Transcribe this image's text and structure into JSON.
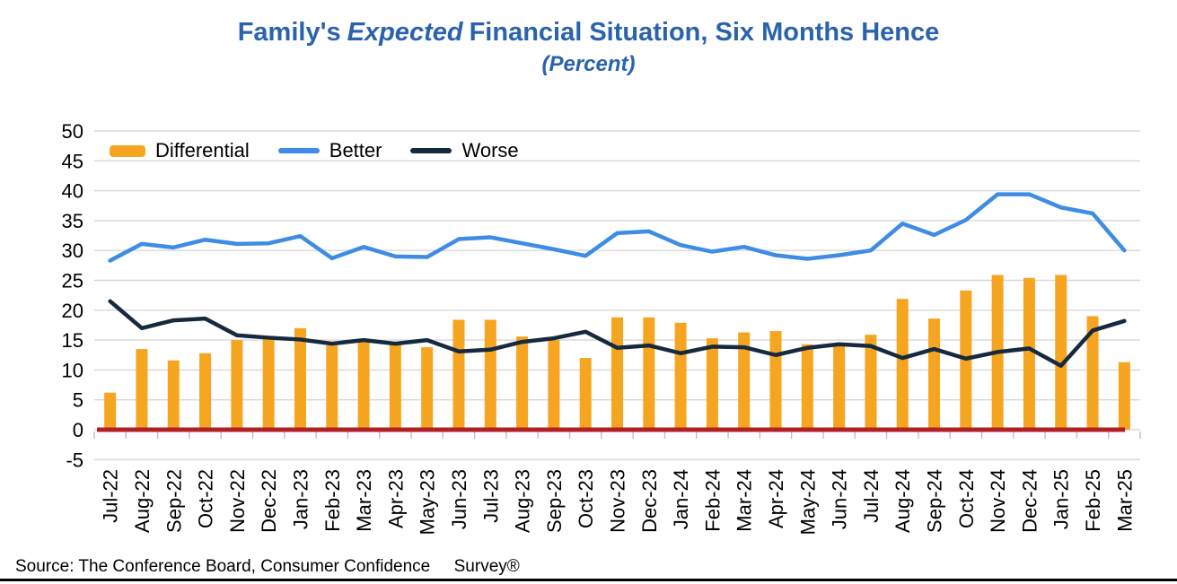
{
  "title": {
    "prefix": "Family's",
    "emphasis": "Expected",
    "suffix": "Financial Situation, Six Months Hence",
    "subtitle": "(Percent)",
    "color": "#2B62AE"
  },
  "source": "Source: The Conference Board, Consumer Confidence     Survey®",
  "colors": {
    "title": "#2B62AE",
    "bar": "#F6A521",
    "better_line": "#3E8CE4",
    "worse_line": "#16293E",
    "zero_line": "#B22024",
    "grid": "#D8D8D8",
    "tick": "#BFBFBF",
    "axis_text": "#000000"
  },
  "chart_data": {
    "type": "bar",
    "title": "Family's Expected Financial Situation, Six Months Hence",
    "subtitle": "(Percent)",
    "xlabel": "",
    "ylabel": "",
    "ylim": [
      -5,
      50
    ],
    "ytick_step": 5,
    "grid": true,
    "legend_position": "top-left-inside",
    "zero_line": true,
    "categories": [
      "Jul-22",
      "Aug-22",
      "Sep-22",
      "Oct-22",
      "Nov-22",
      "Dec-22",
      "Jan-23",
      "Feb-23",
      "Mar-23",
      "Apr-23",
      "May-23",
      "Jun-23",
      "Jul-23",
      "Aug-23",
      "Sep-23",
      "Oct-23",
      "Nov-23",
      "Dec-23",
      "Jan-24",
      "Feb-24",
      "Mar-24",
      "Apr-24",
      "May-24",
      "Jun-24",
      "Jul-24",
      "Aug-24",
      "Sep-24",
      "Oct-24",
      "Nov-24",
      "Dec-24",
      "Jan-25",
      "Feb-25",
      "Mar-25"
    ],
    "series": [
      {
        "name": "Differential",
        "type": "bar",
        "color": "#F6A521",
        "values": [
          6.2,
          13.5,
          11.6,
          12.8,
          15.0,
          15.6,
          17.0,
          14.1,
          15.2,
          14.4,
          13.8,
          18.4,
          18.4,
          15.6,
          15.0,
          12.0,
          18.8,
          18.8,
          17.9,
          15.3,
          16.3,
          16.5,
          14.3,
          14.2,
          15.9,
          21.9,
          18.6,
          23.3,
          25.9,
          25.4,
          25.9,
          19.0,
          11.3
        ]
      },
      {
        "name": "Better",
        "type": "line",
        "color": "#3E8CE4",
        "values": [
          28.3,
          31.1,
          30.5,
          31.8,
          31.1,
          31.2,
          32.4,
          28.7,
          30.6,
          29.0,
          28.9,
          31.9,
          32.2,
          31.2,
          30.2,
          29.1,
          32.9,
          33.2,
          30.9,
          29.8,
          30.6,
          29.2,
          28.6,
          29.2,
          30.0,
          34.5,
          32.6,
          35.1,
          39.4,
          39.4,
          37.2,
          36.2,
          30.0
        ]
      },
      {
        "name": "Worse",
        "type": "line",
        "color": "#16293E",
        "values": [
          21.5,
          17.0,
          18.3,
          18.6,
          15.8,
          15.4,
          15.1,
          14.4,
          15.0,
          14.4,
          15.0,
          13.1,
          13.4,
          14.7,
          15.3,
          16.4,
          13.7,
          14.1,
          12.8,
          13.9,
          13.8,
          12.5,
          13.7,
          14.3,
          14.0,
          12.0,
          13.5,
          11.9,
          13.0,
          13.6,
          10.7,
          16.6,
          18.2
        ]
      }
    ]
  }
}
